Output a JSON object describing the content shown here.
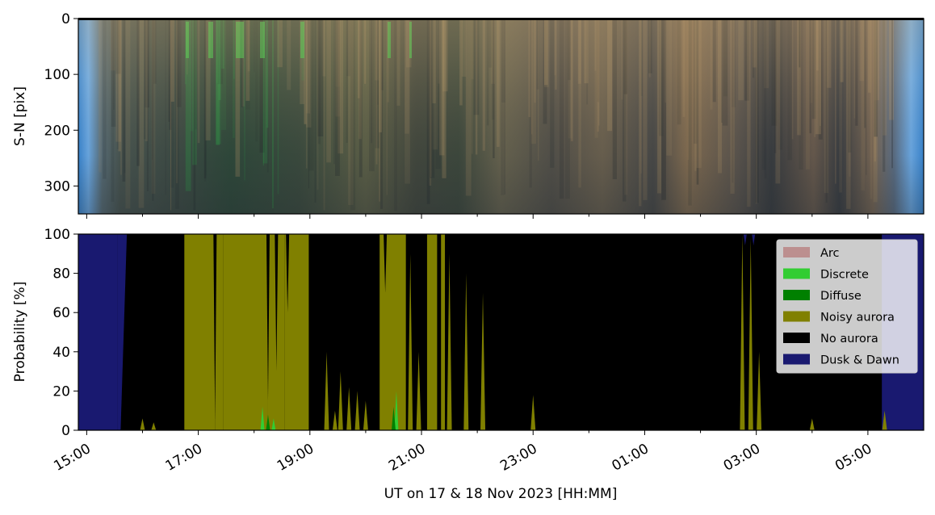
{
  "chart_data": [
    {
      "type": "heatmap",
      "description_visible": "keogram image (time vs south-north pixel)",
      "ylabel": "S-N [pix]",
      "ylim": [
        350,
        0
      ],
      "yticks": [
        0,
        100,
        200,
        300
      ],
      "ytick_labels": [
        "0",
        "100",
        "200",
        "300"
      ],
      "xlim_hours": [
        14.85,
        30.0
      ]
    },
    {
      "type": "area",
      "stacked": true,
      "ylabel": "Probability [%]",
      "ylim": [
        0,
        100
      ],
      "yticks": [
        0,
        20,
        40,
        60,
        80,
        100
      ],
      "ytick_labels": [
        "0",
        "20",
        "40",
        "60",
        "80",
        "100"
      ],
      "xlabel": "UT on 17 & 18 Nov 2023 [HH:MM]",
      "xlim_hours": [
        14.85,
        30.0
      ],
      "xticks_hours": [
        15,
        17,
        19,
        21,
        23,
        25,
        27,
        29
      ],
      "xtick_labels": [
        "15:00",
        "17:00",
        "19:00",
        "21:00",
        "23:00",
        "01:00",
        "03:00",
        "05:00"
      ],
      "minor_xticks_hours": [
        16,
        18,
        20,
        22,
        24,
        26,
        28
      ],
      "legend_position": "upper-right",
      "series": [
        {
          "name": "Arc",
          "color": "#bc8f8f"
        },
        {
          "name": "Discrete",
          "color": "#32cd32"
        },
        {
          "name": "Diffuse",
          "color": "#008000"
        },
        {
          "name": "Noisy aurora",
          "color": "#808000"
        },
        {
          "name": "No aurora",
          "color": "#000000"
        },
        {
          "name": "Dusk & Dawn",
          "color": "#191970"
        }
      ],
      "segments": [
        {
          "t0": 14.85,
          "t1": 15.55,
          "state": "Dusk & Dawn"
        },
        {
          "t0": 15.55,
          "t1": 15.72,
          "state": "transition"
        },
        {
          "t0": 15.72,
          "t1": 16.75,
          "state": "No aurora"
        },
        {
          "t0": 16.75,
          "t1": 17.3,
          "state": "Noisy aurora"
        },
        {
          "t0": 17.3,
          "t1": 17.45,
          "state": "Noisy aurora"
        },
        {
          "t0": 17.45,
          "t1": 18.25,
          "state": "Noisy aurora"
        },
        {
          "t0": 18.25,
          "t1": 18.55,
          "state": "Noisy aurora"
        },
        {
          "t0": 18.55,
          "t1": 18.98,
          "state": "Noisy aurora"
        },
        {
          "t0": 18.98,
          "t1": 20.25,
          "state": "No aurora"
        },
        {
          "t0": 20.25,
          "t1": 20.72,
          "state": "Noisy aurora"
        },
        {
          "t0": 20.72,
          "t1": 21.1,
          "state": "No aurora"
        },
        {
          "t0": 21.1,
          "t1": 21.28,
          "state": "Noisy aurora"
        },
        {
          "t0": 21.28,
          "t1": 21.35,
          "state": "No aurora"
        },
        {
          "t0": 21.35,
          "t1": 21.42,
          "state": "Noisy aurora"
        },
        {
          "t0": 21.42,
          "t1": 29.25,
          "state": "No aurora"
        },
        {
          "t0": 29.25,
          "t1": 30.0,
          "state": "Dusk & Dawn"
        }
      ]
    }
  ]
}
